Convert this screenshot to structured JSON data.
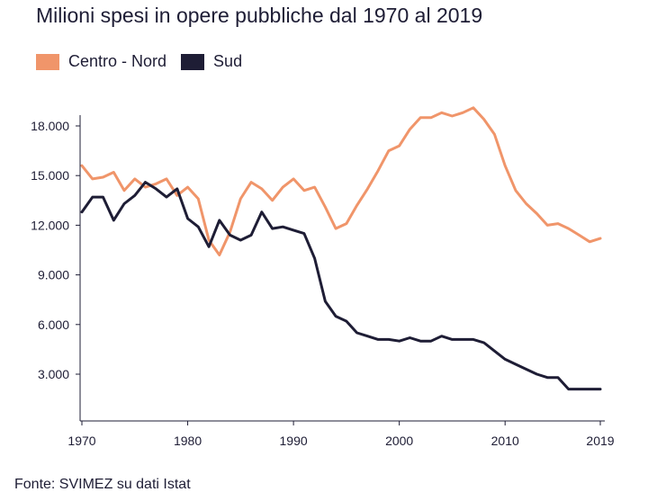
{
  "chart_data": {
    "type": "line",
    "title": "Milioni spesi in opere pubbliche dal 1970 al 2019",
    "source": "Fonte: SVIMEZ su dati Istat",
    "xlim": [
      1970,
      2019
    ],
    "ylim": [
      0,
      19500
    ],
    "x_ticks": [
      1970,
      1980,
      1990,
      2000,
      2010,
      2019
    ],
    "y_ticks": [
      3000,
      6000,
      9000,
      12000,
      15000,
      18000
    ],
    "y_tick_labels": [
      "3.000",
      "6.000",
      "9.000",
      "12.000",
      "15.000",
      "18.000"
    ],
    "legend_position": "top-left",
    "grid": false,
    "x": [
      1970,
      1971,
      1972,
      1973,
      1974,
      1975,
      1976,
      1977,
      1978,
      1979,
      1980,
      1981,
      1982,
      1983,
      1984,
      1985,
      1986,
      1987,
      1988,
      1989,
      1990,
      1991,
      1992,
      1993,
      1994,
      1995,
      1996,
      1997,
      1998,
      1999,
      2000,
      2001,
      2002,
      2003,
      2004,
      2005,
      2006,
      2007,
      2008,
      2009,
      2010,
      2011,
      2012,
      2013,
      2014,
      2015,
      2016,
      2017,
      2018,
      2019
    ],
    "series": [
      {
        "name": "Centro - Nord",
        "color": "#f0956a",
        "values": [
          15600,
          14800,
          14900,
          15200,
          14100,
          14800,
          14300,
          14500,
          14800,
          13800,
          14300,
          13600,
          11100,
          10200,
          11600,
          13600,
          14600,
          14200,
          13500,
          14300,
          14800,
          14100,
          14300,
          13100,
          11800,
          12100,
          13200,
          14200,
          15300,
          16500,
          16800,
          17800,
          18500,
          18500,
          18800,
          18600,
          18800,
          19100,
          18400,
          17500,
          15600,
          14100,
          13300,
          12700,
          12000,
          12100,
          11800,
          11400,
          11000,
          11200
        ]
      },
      {
        "name": "Sud",
        "color": "#1e1d35",
        "values": [
          12800,
          13700,
          13700,
          12300,
          13300,
          13800,
          14600,
          14200,
          13700,
          14200,
          12400,
          11900,
          10700,
          12300,
          11400,
          11100,
          11400,
          12800,
          11800,
          11900,
          11700,
          11500,
          10000,
          7400,
          6500,
          6200,
          5500,
          5300,
          5100,
          5100,
          5000,
          5200,
          5000,
          5000,
          5300,
          5100,
          5100,
          5100,
          4900,
          4400,
          3900,
          3600,
          3300,
          3000,
          2800,
          2800,
          2100,
          2100,
          2100,
          2100
        ]
      }
    ]
  }
}
